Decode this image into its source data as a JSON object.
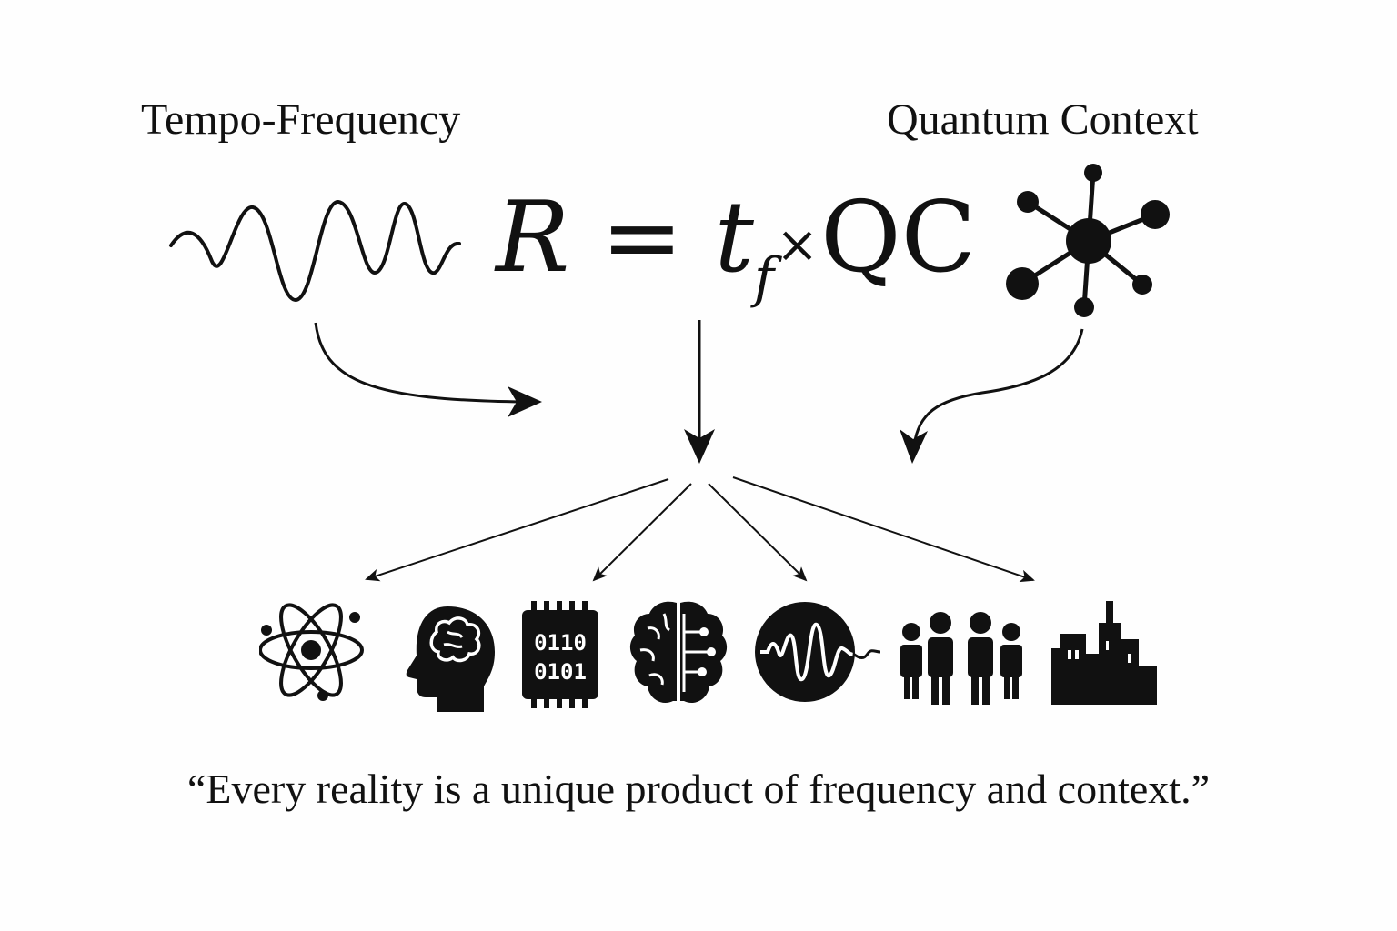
{
  "labels": {
    "tempo_frequency": "Tempo-Frequency",
    "quantum_context": "Quantum Context"
  },
  "equation": {
    "lhs": "R",
    "equals": "=",
    "t": "t",
    "subscript": "f",
    "times": "×",
    "qc": "QC"
  },
  "chip_text": {
    "line1": "0110",
    "line2": "0101"
  },
  "quote": "“Every reality is a unique product of frequency and context.”",
  "icons": [
    "atom-icon",
    "human-head-brain-icon",
    "binary-chip-icon",
    "circuit-brain-icon",
    "waveform-circle-icon",
    "people-group-icon",
    "city-skyline-icon"
  ],
  "colors": {
    "ink": "#111111",
    "background": "#fefefe"
  }
}
